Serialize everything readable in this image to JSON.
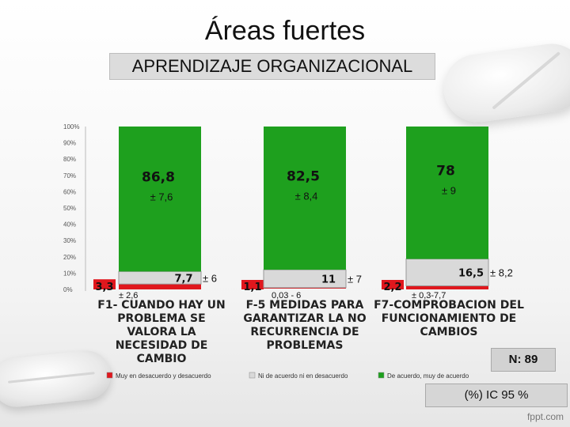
{
  "title": "Áreas fuertes",
  "subtitle": "APRENDIZAJE ORGANIZACIONAL",
  "n_label": "N: 89",
  "ic_label": "(%) IC 95 %",
  "watermark": "fppt.com",
  "colors": {
    "red": "#e0171d",
    "gray": "#d9d9d9",
    "green": "#1ea01e"
  },
  "chart_data": {
    "type": "bar",
    "stacked": true,
    "ylim": [
      0,
      100
    ],
    "yticks": [
      "0%",
      "10%",
      "20%",
      "30%",
      "40%",
      "50%",
      "60%",
      "70%",
      "80%",
      "90%",
      "100%"
    ],
    "categories": [
      "F1- CUANDO HAY UN PROBLEMA SE VALORA LA NECESIDAD DE CAMBIO",
      "F-5 MEDIDAS PARA GARANTIZAR LA NO RECURRENCIA DE PROBLEMAS",
      "F7-COMPROBACION DEL FUNCIONAMIENTO DE CAMBIOS"
    ],
    "series": [
      {
        "name": "Muy en desacuerdo y desacuerdo",
        "values": [
          3.3,
          1.1,
          2.2
        ],
        "labels": [
          "3,3",
          "1,1",
          "2,2"
        ]
      },
      {
        "name": "Ni de acuerdo ni en desacuerdo",
        "values": [
          7.7,
          11,
          16.5
        ],
        "labels": [
          "7,7",
          "11",
          "16,5"
        ]
      },
      {
        "name": "De acuerdo, muy de acuerdo",
        "values": [
          86.8,
          82.5,
          78
        ],
        "labels": [
          "86,8",
          "82,5",
          "78"
        ]
      }
    ],
    "ci": {
      "red": [
        "± 2,6",
        "0,03 - 6",
        "± 0,3-7,7"
      ],
      "gray": [
        "± 6",
        "± 7",
        "± 8,2"
      ],
      "green": [
        "± 7,6",
        "± 8,4",
        "± 9"
      ]
    },
    "legend_position": "bottom"
  }
}
